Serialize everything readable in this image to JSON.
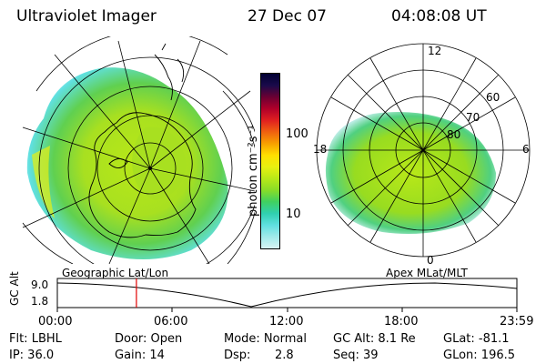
{
  "header": {
    "title": "Ultraviolet Imager",
    "date": "27 Dec 07",
    "time": "04:08:08 UT"
  },
  "left_panel": {
    "projection_label": "Geographic Lat/Lon"
  },
  "right_panel": {
    "projection_label": "Apex MLat/MLT",
    "mlt_labels": [
      "12",
      "18",
      "6",
      "0"
    ],
    "mlat_labels": [
      "60",
      "70",
      "80"
    ]
  },
  "colorbar": {
    "unit_label": "photon cm⁻²s⁻¹",
    "tick_labels": [
      "100",
      "10"
    ],
    "colors": [
      "#000033",
      "#1a0a4a",
      "#6a0033",
      "#b0002a",
      "#e02020",
      "#f06010",
      "#f8a000",
      "#ffe000",
      "#e8f010",
      "#b8e818",
      "#88dc28",
      "#40d060",
      "#30d0b0",
      "#60e0e0",
      "#a0eaea",
      "#d8f4f4"
    ]
  },
  "timeline": {
    "y_axis_label": "GC Alt",
    "y_ticks": [
      "9.0",
      "1.8"
    ],
    "x_ticks": [
      "00:00",
      "06:00",
      "12:00",
      "18:00",
      "23:59"
    ],
    "marker_time_hours": 4.13
  },
  "info": {
    "flt": "Flt: LBHL",
    "ip": "IP: 36.0",
    "door": "Door: Open",
    "gain": "Gain: 14",
    "mode": "Mode: Normal",
    "dsp_label": "Dsp:",
    "dsp_value": "2.8",
    "gc_alt": "GC Alt: 8.1 Re",
    "seq": "Seq: 39",
    "glat": "GLat: -81.1",
    "glon": "GLon: 196.5"
  }
}
